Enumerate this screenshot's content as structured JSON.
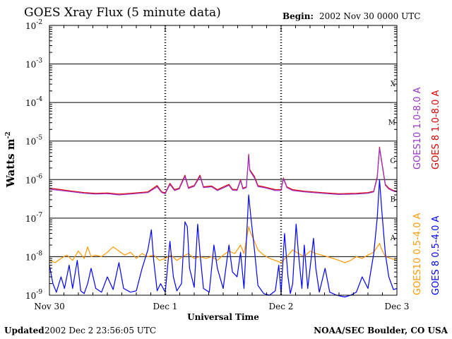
{
  "page": {
    "title": "GOES Xray Flux (5 minute data)",
    "begin_label": "Begin:",
    "begin_value": "2002 Nov 30 0000 UTC",
    "updated_label": "Updated",
    "updated_value": "2002 Dec  2 23:56:05 UTC",
    "credit": "NOAA/SEC Boulder, CO USA"
  },
  "chart_data": {
    "type": "line",
    "title": "GOES Xray Flux (5 minute data)",
    "xlabel": "Universal Time",
    "ylabel": "Watts m",
    "ylabel_exponent": "-2",
    "y_scale": "log",
    "ylim": [
      1e-09,
      0.01
    ],
    "y_ticks": [
      {
        "base": "10",
        "exp": "-2"
      },
      {
        "base": "10",
        "exp": "-3"
      },
      {
        "base": "10",
        "exp": "-4"
      },
      {
        "base": "10",
        "exp": "-5"
      },
      {
        "base": "10",
        "exp": "-6"
      },
      {
        "base": "10",
        "exp": "-7"
      },
      {
        "base": "10",
        "exp": "-8"
      },
      {
        "base": "10",
        "exp": "-9"
      }
    ],
    "x_unit": "days since 2002 Nov 30 00:00 UTC",
    "xlim": [
      0,
      3
    ],
    "x_ticks": [
      {
        "x": 0,
        "label": "Nov 30"
      },
      {
        "x": 1,
        "label": "Dec 1"
      },
      {
        "x": 2,
        "label": "Dec 2"
      },
      {
        "x": 3,
        "label": "Dec 3"
      }
    ],
    "flare_classes": [
      {
        "label": "X",
        "value": 0.0001
      },
      {
        "label": "M",
        "value": 1e-05
      },
      {
        "label": "C",
        "value": 1e-06
      },
      {
        "label": "B",
        "value": 1e-07
      },
      {
        "label": "A",
        "value": 1e-08
      }
    ],
    "grid": "horizontal lines at each decade, dotted vertical day separators",
    "legend": [
      {
        "name": "GOES10 1.0-8.0 A",
        "color": "#9933cc"
      },
      {
        "name": "GOES 8 1.0-8.0 A",
        "color": "#dd0000"
      },
      {
        "name": "GOES10 0.5-4.0 A",
        "color": "#ff9900"
      },
      {
        "name": "GOES 8 0.5-4.0 A",
        "color": "#0000ff"
      }
    ],
    "series": [
      {
        "name": "GOES 8 1.0-8.0 A",
        "color": "#dd0000",
        "points": [
          [
            0.0,
            6e-07
          ],
          [
            0.1,
            5.5e-07
          ],
          [
            0.2,
            5e-07
          ],
          [
            0.3,
            4.6e-07
          ],
          [
            0.4,
            4.4e-07
          ],
          [
            0.5,
            4.5e-07
          ],
          [
            0.6,
            4.2e-07
          ],
          [
            0.7,
            4.4e-07
          ],
          [
            0.85,
            4.8e-07
          ],
          [
            0.93,
            7e-07
          ],
          [
            0.97,
            4.8e-07
          ],
          [
            1.0,
            4.5e-07
          ],
          [
            1.04,
            8e-07
          ],
          [
            1.08,
            5.5e-07
          ],
          [
            1.12,
            6e-07
          ],
          [
            1.17,
            1.3e-06
          ],
          [
            1.2,
            6.2e-07
          ],
          [
            1.25,
            7e-07
          ],
          [
            1.3,
            1.3e-06
          ],
          [
            1.33,
            6.5e-07
          ],
          [
            1.4,
            6.8e-07
          ],
          [
            1.45,
            5.5e-07
          ],
          [
            1.55,
            7.5e-07
          ],
          [
            1.58,
            5.6e-07
          ],
          [
            1.62,
            5.5e-07
          ],
          [
            1.65,
            1e-06
          ],
          [
            1.67,
            6e-07
          ],
          [
            1.7,
            6.5e-07
          ],
          [
            1.72,
            4.5e-06
          ],
          [
            1.73,
            1.8e-06
          ],
          [
            1.77,
            1.2e-06
          ],
          [
            1.8,
            7e-07
          ],
          [
            1.85,
            6.5e-07
          ],
          [
            1.9,
            6e-07
          ],
          [
            1.95,
            5.5e-07
          ],
          [
            2.0,
            5.5e-07
          ],
          [
            2.02,
            1.1e-06
          ],
          [
            2.05,
            6.5e-07
          ],
          [
            2.1,
            5.5e-07
          ],
          [
            2.2,
            5e-07
          ],
          [
            2.35,
            4.6e-07
          ],
          [
            2.5,
            4.3e-07
          ],
          [
            2.65,
            4.4e-07
          ],
          [
            2.75,
            4.6e-07
          ],
          [
            2.8,
            5e-07
          ],
          [
            2.83,
            1.2e-06
          ],
          [
            2.85,
            7e-06
          ],
          [
            2.87,
            2.8e-06
          ],
          [
            2.9,
            7.5e-07
          ],
          [
            2.93,
            6e-07
          ],
          [
            2.97,
            5.2e-07
          ],
          [
            3.0,
            5e-07
          ]
        ]
      },
      {
        "name": "GOES10 1.0-8.0 A",
        "color": "#9933cc",
        "points": [
          [
            0.0,
            5.6e-07
          ],
          [
            0.1,
            5.2e-07
          ],
          [
            0.2,
            4.8e-07
          ],
          [
            0.3,
            4.4e-07
          ],
          [
            0.4,
            4.2e-07
          ],
          [
            0.5,
            4.3e-07
          ],
          [
            0.6,
            4e-07
          ],
          [
            0.7,
            4.2e-07
          ],
          [
            0.85,
            4.6e-07
          ],
          [
            0.93,
            6.5e-07
          ],
          [
            0.97,
            4.6e-07
          ],
          [
            1.0,
            4.3e-07
          ],
          [
            1.04,
            7.5e-07
          ],
          [
            1.08,
            5.2e-07
          ],
          [
            1.12,
            5.7e-07
          ],
          [
            1.17,
            1.2e-06
          ],
          [
            1.2,
            5.9e-07
          ],
          [
            1.25,
            6.7e-07
          ],
          [
            1.3,
            1.2e-06
          ],
          [
            1.33,
            6.2e-07
          ],
          [
            1.4,
            6.5e-07
          ],
          [
            1.45,
            5.2e-07
          ],
          [
            1.55,
            7.1e-07
          ],
          [
            1.58,
            5.3e-07
          ],
          [
            1.62,
            5.2e-07
          ],
          [
            1.65,
            9.5e-07
          ],
          [
            1.67,
            5.7e-07
          ],
          [
            1.7,
            6.2e-07
          ],
          [
            1.72,
            4.2e-06
          ],
          [
            1.73,
            1.7e-06
          ],
          [
            1.77,
            1.1e-06
          ],
          [
            1.8,
            6.6e-07
          ],
          [
            1.85,
            6.2e-07
          ],
          [
            1.9,
            5.7e-07
          ],
          [
            1.95,
            5.2e-07
          ],
          [
            2.0,
            5.2e-07
          ],
          [
            2.02,
            1.05e-06
          ],
          [
            2.05,
            6.2e-07
          ],
          [
            2.1,
            5.2e-07
          ],
          [
            2.2,
            4.8e-07
          ],
          [
            2.35,
            4.4e-07
          ],
          [
            2.5,
            4.1e-07
          ],
          [
            2.65,
            4.2e-07
          ],
          [
            2.75,
            4.4e-07
          ],
          [
            2.8,
            4.8e-07
          ],
          [
            2.83,
            1.1e-06
          ],
          [
            2.85,
            6.5e-06
          ],
          [
            2.87,
            2.6e-06
          ],
          [
            2.9,
            7.1e-07
          ],
          [
            2.93,
            5.7e-07
          ],
          [
            2.97,
            5e-07
          ],
          [
            3.0,
            4.8e-07
          ]
        ]
      },
      {
        "name": "GOES10 0.5-4.0 A",
        "color": "#ff9900",
        "points": [
          [
            0.0,
            8e-09
          ],
          [
            0.05,
            7e-09
          ],
          [
            0.1,
            9e-09
          ],
          [
            0.15,
            1.1e-08
          ],
          [
            0.2,
            8e-09
          ],
          [
            0.25,
            1.4e-08
          ],
          [
            0.3,
            9e-09
          ],
          [
            0.33,
            1.8e-08
          ],
          [
            0.36,
            1e-08
          ],
          [
            0.4,
            1.1e-08
          ],
          [
            0.45,
            1e-08
          ],
          [
            0.5,
            1.3e-08
          ],
          [
            0.55,
            1.8e-08
          ],
          [
            0.6,
            1.4e-08
          ],
          [
            0.65,
            1.1e-08
          ],
          [
            0.7,
            1.3e-08
          ],
          [
            0.75,
            9e-09
          ],
          [
            0.8,
            1.2e-08
          ],
          [
            0.85,
            1e-08
          ],
          [
            0.9,
            1.1e-08
          ],
          [
            0.95,
            8e-09
          ],
          [
            1.0,
            9e-09
          ],
          [
            1.05,
            1.1e-08
          ],
          [
            1.1,
            8e-09
          ],
          [
            1.15,
            1e-08
          ],
          [
            1.2,
            1.2e-08
          ],
          [
            1.25,
            9e-09
          ],
          [
            1.3,
            1e-08
          ],
          [
            1.35,
            9e-09
          ],
          [
            1.4,
            1e-08
          ],
          [
            1.45,
            8e-09
          ],
          [
            1.5,
            1.1e-08
          ],
          [
            1.55,
            1.4e-08
          ],
          [
            1.6,
            1.2e-08
          ],
          [
            1.65,
            2e-08
          ],
          [
            1.68,
            1.2e-08
          ],
          [
            1.72,
            6e-08
          ],
          [
            1.74,
            4e-08
          ],
          [
            1.77,
            2.5e-08
          ],
          [
            1.8,
            1.5e-08
          ],
          [
            1.85,
            1.1e-08
          ],
          [
            1.9,
            9e-09
          ],
          [
            1.95,
            8e-09
          ],
          [
            2.0,
            7e-09
          ],
          [
            2.05,
            1e-08
          ],
          [
            2.1,
            1.5e-08
          ],
          [
            2.15,
            1.2e-08
          ],
          [
            2.2,
            1e-08
          ],
          [
            2.25,
            1.4e-08
          ],
          [
            2.3,
            1.2e-08
          ],
          [
            2.35,
            1.1e-08
          ],
          [
            2.4,
            1e-08
          ],
          [
            2.45,
            9e-09
          ],
          [
            2.5,
            8e-09
          ],
          [
            2.55,
            7e-09
          ],
          [
            2.6,
            8e-09
          ],
          [
            2.65,
            1e-08
          ],
          [
            2.7,
            9e-09
          ],
          [
            2.75,
            1.1e-08
          ],
          [
            2.8,
            1.3e-08
          ],
          [
            2.85,
            2.2e-08
          ],
          [
            2.87,
            1.5e-08
          ],
          [
            2.9,
            1e-08
          ],
          [
            2.95,
            9e-09
          ],
          [
            3.0,
            8e-09
          ]
        ]
      },
      {
        "name": "GOES 8 0.5-4.0 A",
        "color": "#0000ff",
        "points": [
          [
            0.0,
            6e-09
          ],
          [
            0.03,
            2e-09
          ],
          [
            0.06,
            1.2e-09
          ],
          [
            0.1,
            3e-09
          ],
          [
            0.13,
            1.5e-09
          ],
          [
            0.17,
            6e-09
          ],
          [
            0.2,
            1.5e-09
          ],
          [
            0.24,
            8e-09
          ],
          [
            0.27,
            1.3e-09
          ],
          [
            0.3,
            1.1e-09
          ],
          [
            0.33,
            2e-09
          ],
          [
            0.36,
            5e-09
          ],
          [
            0.4,
            1.5e-09
          ],
          [
            0.45,
            1.2e-09
          ],
          [
            0.5,
            3e-09
          ],
          [
            0.55,
            1.4e-09
          ],
          [
            0.6,
            7e-09
          ],
          [
            0.64,
            1.5e-09
          ],
          [
            0.7,
            1.2e-09
          ],
          [
            0.75,
            1.3e-09
          ],
          [
            0.8,
            5e-09
          ],
          [
            0.85,
            1.5e-08
          ],
          [
            0.88,
            5e-08
          ],
          [
            0.9,
            8e-09
          ],
          [
            0.93,
            1.3e-09
          ],
          [
            0.96,
            2e-09
          ],
          [
            1.0,
            1.2e-09
          ],
          [
            1.04,
            2.5e-08
          ],
          [
            1.07,
            3e-09
          ],
          [
            1.1,
            1.3e-09
          ],
          [
            1.14,
            2e-09
          ],
          [
            1.17,
            8e-08
          ],
          [
            1.19,
            6e-08
          ],
          [
            1.21,
            5e-09
          ],
          [
            1.25,
            1.6e-09
          ],
          [
            1.28,
            7e-08
          ],
          [
            1.3,
            1.2e-08
          ],
          [
            1.33,
            1.5e-09
          ],
          [
            1.38,
            1.2e-09
          ],
          [
            1.42,
            2e-08
          ],
          [
            1.45,
            5e-09
          ],
          [
            1.5,
            1.5e-09
          ],
          [
            1.55,
            2e-08
          ],
          [
            1.58,
            4e-09
          ],
          [
            1.62,
            3e-09
          ],
          [
            1.65,
            1.3e-08
          ],
          [
            1.68,
            1.5e-09
          ],
          [
            1.72,
            4e-07
          ],
          [
            1.74,
            1e-07
          ],
          [
            1.77,
            1.5e-08
          ],
          [
            1.8,
            1.8e-09
          ],
          [
            1.85,
            1.1e-09
          ],
          [
            1.9,
            1e-09
          ],
          [
            1.95,
            1.3e-09
          ],
          [
            1.98,
            6e-09
          ],
          [
            2.0,
            1.1e-09
          ],
          [
            2.03,
            4e-08
          ],
          [
            2.06,
            3e-09
          ],
          [
            2.08,
            1.1e-09
          ],
          [
            2.1,
            2e-09
          ],
          [
            2.13,
            7e-08
          ],
          [
            2.15,
            1.2e-08
          ],
          [
            2.18,
            1.5e-09
          ],
          [
            2.2,
            2e-08
          ],
          [
            2.23,
            1.5e-09
          ],
          [
            2.28,
            3e-08
          ],
          [
            2.3,
            5e-09
          ],
          [
            2.33,
            1.2e-09
          ],
          [
            2.38,
            5e-09
          ],
          [
            2.42,
            1.2e-09
          ],
          [
            2.48,
            1e-09
          ],
          [
            2.55,
            9e-10
          ],
          [
            2.6,
            1e-09
          ],
          [
            2.65,
            1.2e-09
          ],
          [
            2.7,
            3e-09
          ],
          [
            2.75,
            1.5e-09
          ],
          [
            2.8,
            1.2e-08
          ],
          [
            2.83,
            1e-07
          ],
          [
            2.85,
            1e-06
          ],
          [
            2.87,
            1.5e-07
          ],
          [
            2.9,
            1.2e-08
          ],
          [
            2.93,
            3e-09
          ],
          [
            2.97,
            1.4e-09
          ],
          [
            3.0,
            1.5e-09
          ]
        ]
      }
    ]
  }
}
